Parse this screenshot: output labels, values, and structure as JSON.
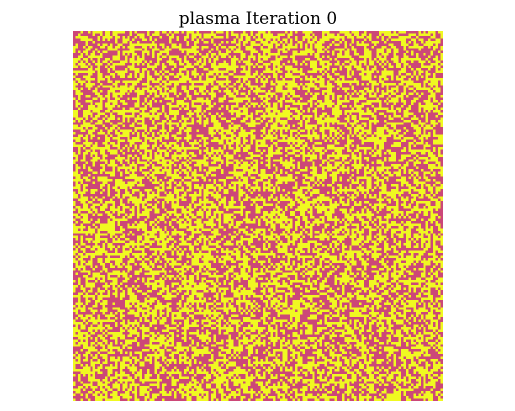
{
  "chart_data": {
    "type": "heatmap",
    "title": "plasma Iteration 0",
    "colormap": "plasma",
    "grid_size": [
      150,
      150
    ],
    "states": [
      0,
      1
    ],
    "state_colors": {
      "0": "#cc4778",
      "1": "#f0f921"
    },
    "density_state_1": 0.5,
    "axes_visible": false
  }
}
